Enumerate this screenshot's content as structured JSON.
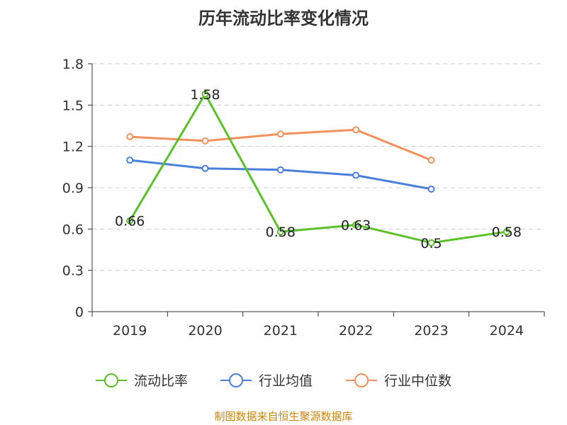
{
  "chart_data": {
    "type": "line",
    "title": "历年流动比率变化情况",
    "categories": [
      "2019",
      "2020",
      "2021",
      "2022",
      "2023",
      "2024"
    ],
    "ylim": [
      0,
      1.8
    ],
    "yticks": [
      "0",
      "0.3",
      "0.6",
      "0.9",
      "1.2",
      "1.5",
      "1.8"
    ],
    "grid": true,
    "legend_position": "bottom",
    "series": [
      {
        "name": "流动比率",
        "color": "#5bc02a",
        "values": [
          0.66,
          1.58,
          0.58,
          0.63,
          0.5,
          0.58
        ],
        "labels": [
          "0.66",
          "1.58",
          "0.58",
          "0.63",
          "0.5",
          "0.58"
        ]
      },
      {
        "name": "行业均值",
        "color": "#4a7fdb",
        "values": [
          1.1,
          1.04,
          1.03,
          0.99,
          0.89,
          null
        ]
      },
      {
        "name": "行业中位数",
        "color": "#f4905c",
        "values": [
          1.27,
          1.24,
          1.29,
          1.32,
          1.1,
          null
        ]
      }
    ]
  },
  "source": "制图数据来自恒生聚源数据库"
}
